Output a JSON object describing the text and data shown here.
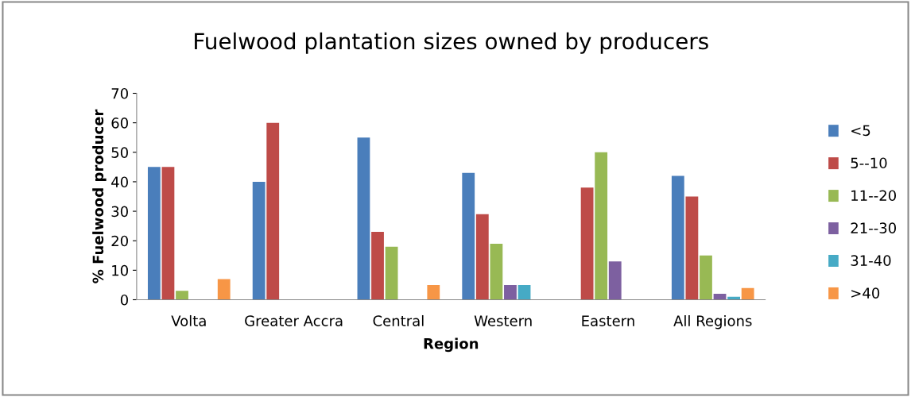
{
  "chart_data": {
    "type": "bar",
    "title": "Fuelwood plantation sizes owned by producers",
    "xlabel": "Region",
    "ylabel": "% Fuelwood producer",
    "categories": [
      "Volta",
      "Greater Accra",
      "Central",
      "Western",
      "Eastern",
      "All Regions"
    ],
    "series": [
      {
        "name": "<5",
        "color": "#4a7ebb",
        "values": [
          45,
          40,
          55,
          43,
          0,
          42
        ]
      },
      {
        "name": "5--10",
        "color": "#be4b48",
        "values": [
          45,
          60,
          23,
          29,
          38,
          35
        ]
      },
      {
        "name": "11--20",
        "color": "#98b954",
        "values": [
          3,
          0,
          18,
          19,
          50,
          15
        ]
      },
      {
        "name": "21--30",
        "color": "#7d60a0",
        "values": [
          0,
          0,
          0,
          5,
          13,
          2
        ]
      },
      {
        "name": "31-40",
        "color": "#46aac5",
        "values": [
          0,
          0,
          0,
          5,
          0,
          1
        ]
      },
      {
        "name": ">40",
        "color": "#f79646",
        "values": [
          7,
          0,
          5,
          0,
          0,
          4
        ]
      }
    ],
    "ylim": [
      0,
      70
    ],
    "yticks": [
      0,
      10,
      20,
      30,
      40,
      50,
      60,
      70
    ],
    "grid": false,
    "legend": "right"
  }
}
